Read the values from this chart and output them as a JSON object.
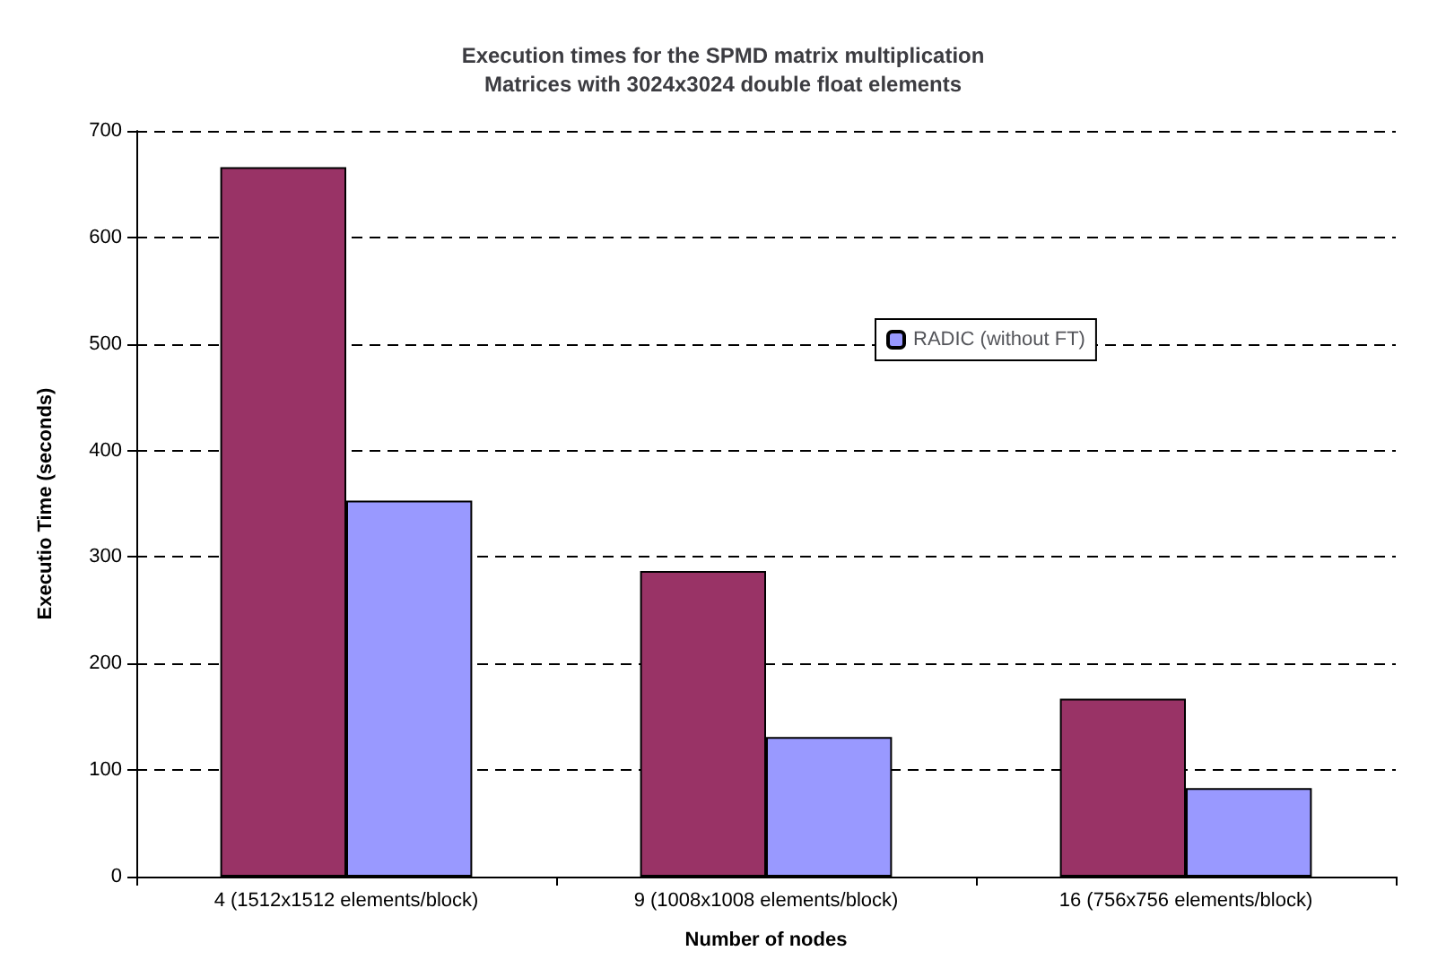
{
  "chart_data": {
    "type": "bar",
    "title": "Execution times for the SPMD matrix multiplication\nMatrices with 3024x3024 double float elements",
    "xlabel": "Number of nodes",
    "ylabel": "Executio Time (seconds)",
    "categories": [
      "4 (1512x1512 elements/block)",
      "9 (1008x1008 elements/block)",
      "16 (756x756 elements/block)"
    ],
    "series": [
      {
        "color": "#993366",
        "values": [
          666,
          287,
          167
        ]
      },
      {
        "name": "RADIC (without FT)",
        "color": "#9999ff",
        "values": [
          353,
          131,
          83
        ]
      }
    ],
    "ylim": [
      0,
      700
    ],
    "yticks": [
      0,
      100,
      200,
      300,
      400,
      500,
      600,
      700
    ],
    "grid": "y",
    "legend": "right"
  }
}
